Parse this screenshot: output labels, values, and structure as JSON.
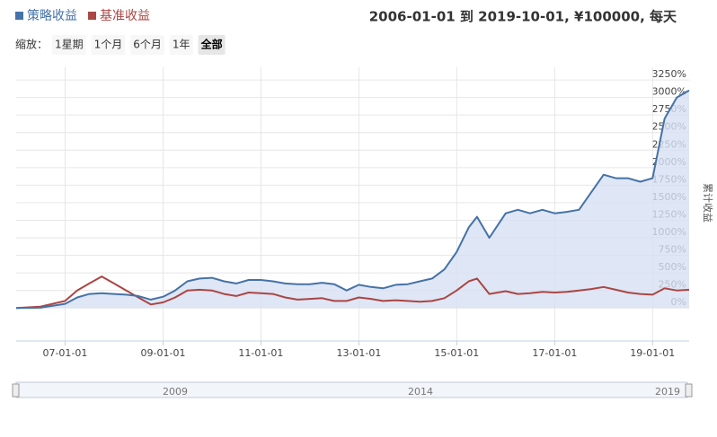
{
  "chart_data": {
    "type": "line",
    "subtitle": "2006-01-01 到 2019-10-01, ¥100000, 每天",
    "zoom_label": "缩放：",
    "zoom_buttons": [
      "1星期",
      "1个月",
      "6个月",
      "1年",
      "全部"
    ],
    "y_axis_label": "累计收益",
    "navigator_labels": [
      "2009",
      "2014",
      "2019"
    ],
    "x": [
      "2006-01-01",
      "2006-07-01",
      "2007-01-01",
      "2007-04-01",
      "2007-07-01",
      "2007-10-01",
      "2008-01-01",
      "2008-04-01",
      "2008-07-01",
      "2008-10-01",
      "2009-01-01",
      "2009-04-01",
      "2009-07-01",
      "2009-10-01",
      "2010-01-01",
      "2010-04-01",
      "2010-07-01",
      "2010-10-01",
      "2011-01-01",
      "2011-04-01",
      "2011-07-01",
      "2011-10-01",
      "2012-01-01",
      "2012-04-01",
      "2012-07-01",
      "2012-10-01",
      "2013-01-01",
      "2013-04-01",
      "2013-07-01",
      "2013-10-01",
      "2014-01-01",
      "2014-04-01",
      "2014-07-01",
      "2014-10-01",
      "2015-01-01",
      "2015-04-01",
      "2015-06-01",
      "2015-09-01",
      "2016-01-01",
      "2016-04-01",
      "2016-07-01",
      "2016-10-01",
      "2017-01-01",
      "2017-04-01",
      "2017-07-01",
      "2017-10-01",
      "2018-01-01",
      "2018-04-01",
      "2018-07-01",
      "2018-10-01",
      "2019-01-01",
      "2019-04-01",
      "2019-07-01",
      "2019-10-01"
    ],
    "series": [
      {
        "name": "策略收益",
        "color": "#4572a7",
        "area": "#d7e0f3",
        "values": [
          0,
          5,
          60,
          150,
          200,
          210,
          200,
          190,
          170,
          120,
          160,
          250,
          380,
          420,
          430,
          380,
          350,
          400,
          400,
          380,
          350,
          340,
          340,
          360,
          340,
          250,
          330,
          300,
          280,
          330,
          340,
          380,
          420,
          550,
          800,
          1150,
          1300,
          1000,
          1350,
          1400,
          1350,
          1400,
          1350,
          1370,
          1400,
          1650,
          1900,
          1850,
          1850,
          1800,
          1850,
          2700,
          3000,
          3100
        ]
      },
      {
        "name": "基准收益",
        "color": "#aa4643",
        "values": [
          0,
          20,
          100,
          250,
          350,
          450,
          350,
          250,
          150,
          50,
          80,
          150,
          250,
          260,
          250,
          200,
          170,
          220,
          210,
          200,
          150,
          120,
          130,
          140,
          100,
          100,
          150,
          130,
          100,
          110,
          100,
          90,
          100,
          140,
          250,
          380,
          420,
          200,
          240,
          200,
          210,
          230,
          220,
          230,
          250,
          270,
          300,
          260,
          220,
          200,
          190,
          280,
          250,
          260
        ]
      }
    ],
    "xlim": [
      "2006-01-01",
      "2019-10-01"
    ],
    "xticks": [
      {
        "value": "2007-01-01",
        "label": "07-01-01"
      },
      {
        "value": "2009-01-01",
        "label": "09-01-01"
      },
      {
        "value": "2011-01-01",
        "label": "11-01-01"
      },
      {
        "value": "2013-01-01",
        "label": "13-01-01"
      },
      {
        "value": "2015-01-01",
        "label": "15-01-01"
      },
      {
        "value": "2017-01-01",
        "label": "17-01-01"
      },
      {
        "value": "2019-01-01",
        "label": "19-01-01"
      }
    ],
    "ylim": [
      -470,
      3430
    ],
    "yticks": [
      {
        "value": 0,
        "label": "0%"
      },
      {
        "value": 250,
        "label": "250%"
      },
      {
        "value": 500,
        "label": "500%"
      },
      {
        "value": 750,
        "label": "750%"
      },
      {
        "value": 1000,
        "label": "1000%"
      },
      {
        "value": 1250,
        "label": "1250%"
      },
      {
        "value": 1500,
        "label": "1500%"
      },
      {
        "value": 1750,
        "label": "1750%"
      },
      {
        "value": 2000,
        "label": "2000%"
      },
      {
        "value": 2250,
        "label": "2250%"
      },
      {
        "value": 2500,
        "label": "2500%"
      },
      {
        "value": 2750,
        "label": "2750%"
      },
      {
        "value": 3000,
        "label": "3000%"
      },
      {
        "value": 3250,
        "label": "3250%"
      }
    ],
    "grid": true
  }
}
